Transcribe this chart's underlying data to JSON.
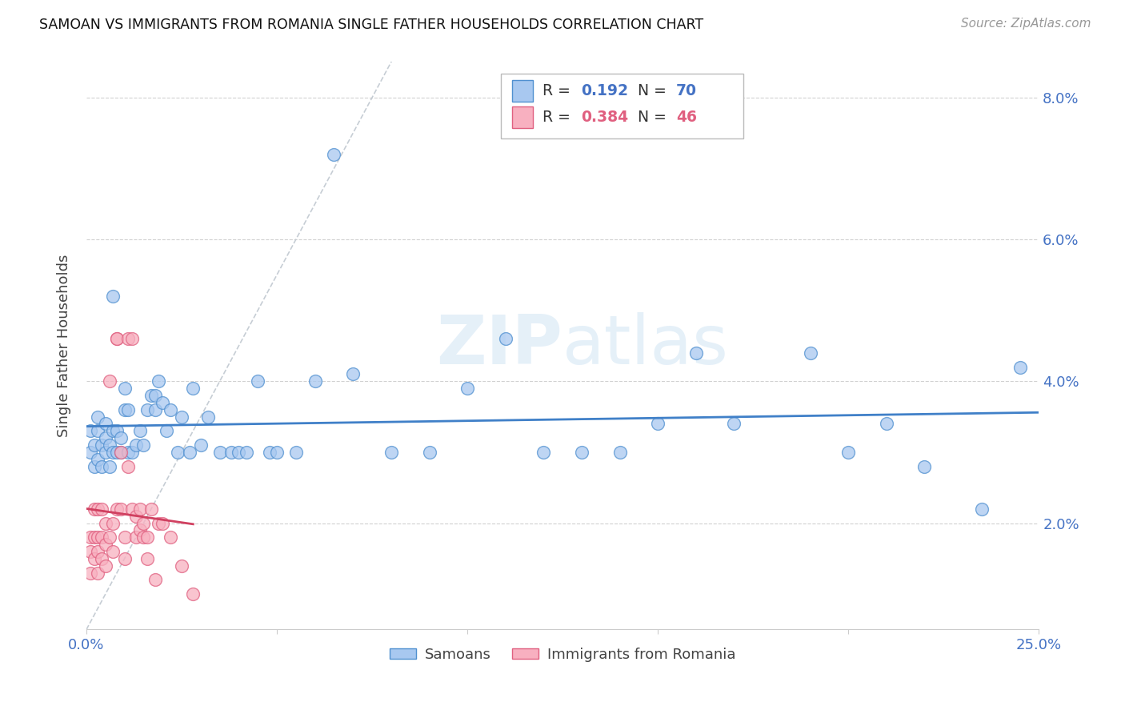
{
  "title": "SAMOAN VS IMMIGRANTS FROM ROMANIA SINGLE FATHER HOUSEHOLDS CORRELATION CHART",
  "source": "Source: ZipAtlas.com",
  "ylabel": "Single Father Households",
  "xlim": [
    0.0,
    0.25
  ],
  "ylim": [
    0.005,
    0.085
  ],
  "xticks": [
    0.0,
    0.05,
    0.1,
    0.15,
    0.2,
    0.25
  ],
  "yticks": [
    0.02,
    0.04,
    0.06,
    0.08
  ],
  "ytick_labels": [
    "2.0%",
    "4.0%",
    "6.0%",
    "8.0%"
  ],
  "xtick_labels": [
    "0.0%",
    "",
    "",
    "",
    "",
    "25.0%"
  ],
  "samoans_R": 0.192,
  "samoans_N": 70,
  "romania_R": 0.384,
  "romania_N": 46,
  "color_samoans_fill": "#A8C8F0",
  "color_samoans_edge": "#5090D0",
  "color_romania_fill": "#F8B0C0",
  "color_romania_edge": "#E06080",
  "color_samoans_line": "#4080C8",
  "color_romania_line": "#D04060",
  "color_diagonal": "#C0C8D0",
  "color_axis_text": "#4472C4",
  "watermark_color": "#D0E4F4",
  "samoans_x": [
    0.001,
    0.001,
    0.002,
    0.002,
    0.003,
    0.003,
    0.003,
    0.004,
    0.004,
    0.005,
    0.005,
    0.005,
    0.006,
    0.006,
    0.007,
    0.007,
    0.007,
    0.008,
    0.008,
    0.009,
    0.009,
    0.01,
    0.01,
    0.011,
    0.011,
    0.012,
    0.013,
    0.014,
    0.015,
    0.016,
    0.017,
    0.018,
    0.018,
    0.019,
    0.02,
    0.021,
    0.022,
    0.024,
    0.025,
    0.027,
    0.028,
    0.03,
    0.032,
    0.035,
    0.038,
    0.04,
    0.042,
    0.045,
    0.048,
    0.05,
    0.055,
    0.06,
    0.065,
    0.07,
    0.08,
    0.09,
    0.1,
    0.11,
    0.12,
    0.13,
    0.14,
    0.15,
    0.16,
    0.17,
    0.19,
    0.2,
    0.21,
    0.22,
    0.235,
    0.245
  ],
  "samoans_y": [
    0.03,
    0.033,
    0.028,
    0.031,
    0.029,
    0.033,
    0.035,
    0.031,
    0.028,
    0.03,
    0.032,
    0.034,
    0.028,
    0.031,
    0.03,
    0.033,
    0.052,
    0.03,
    0.033,
    0.03,
    0.032,
    0.036,
    0.039,
    0.03,
    0.036,
    0.03,
    0.031,
    0.033,
    0.031,
    0.036,
    0.038,
    0.036,
    0.038,
    0.04,
    0.037,
    0.033,
    0.036,
    0.03,
    0.035,
    0.03,
    0.039,
    0.031,
    0.035,
    0.03,
    0.03,
    0.03,
    0.03,
    0.04,
    0.03,
    0.03,
    0.03,
    0.04,
    0.072,
    0.041,
    0.03,
    0.03,
    0.039,
    0.046,
    0.03,
    0.03,
    0.03,
    0.034,
    0.044,
    0.034,
    0.044,
    0.03,
    0.034,
    0.028,
    0.022,
    0.042
  ],
  "romania_x": [
    0.001,
    0.001,
    0.001,
    0.002,
    0.002,
    0.002,
    0.003,
    0.003,
    0.003,
    0.003,
    0.004,
    0.004,
    0.004,
    0.005,
    0.005,
    0.005,
    0.006,
    0.006,
    0.007,
    0.007,
    0.008,
    0.008,
    0.008,
    0.009,
    0.009,
    0.01,
    0.01,
    0.011,
    0.011,
    0.012,
    0.012,
    0.013,
    0.013,
    0.014,
    0.014,
    0.015,
    0.015,
    0.016,
    0.016,
    0.017,
    0.018,
    0.019,
    0.02,
    0.022,
    0.025,
    0.028
  ],
  "romania_y": [
    0.013,
    0.016,
    0.018,
    0.015,
    0.018,
    0.022,
    0.013,
    0.016,
    0.018,
    0.022,
    0.015,
    0.018,
    0.022,
    0.014,
    0.017,
    0.02,
    0.04,
    0.018,
    0.016,
    0.02,
    0.046,
    0.046,
    0.022,
    0.03,
    0.022,
    0.015,
    0.018,
    0.028,
    0.046,
    0.046,
    0.022,
    0.018,
    0.021,
    0.019,
    0.022,
    0.02,
    0.018,
    0.015,
    0.018,
    0.022,
    0.012,
    0.02,
    0.02,
    0.018,
    0.014,
    0.01
  ]
}
